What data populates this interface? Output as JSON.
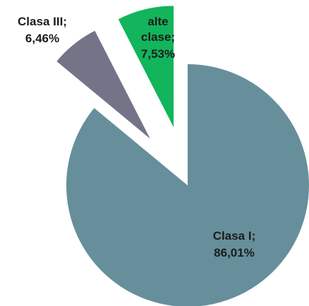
{
  "chart_data": {
    "type": "pie",
    "categories": [
      "Clasa I",
      "Clasa III",
      "alte clase"
    ],
    "values": [
      86.01,
      6.46,
      7.53
    ],
    "value_labels": [
      "86,01%",
      "6,46%",
      "7,53%"
    ],
    "label_separator": ";",
    "colors": [
      "#668f9b",
      "#747489",
      "#12b55c"
    ]
  }
}
